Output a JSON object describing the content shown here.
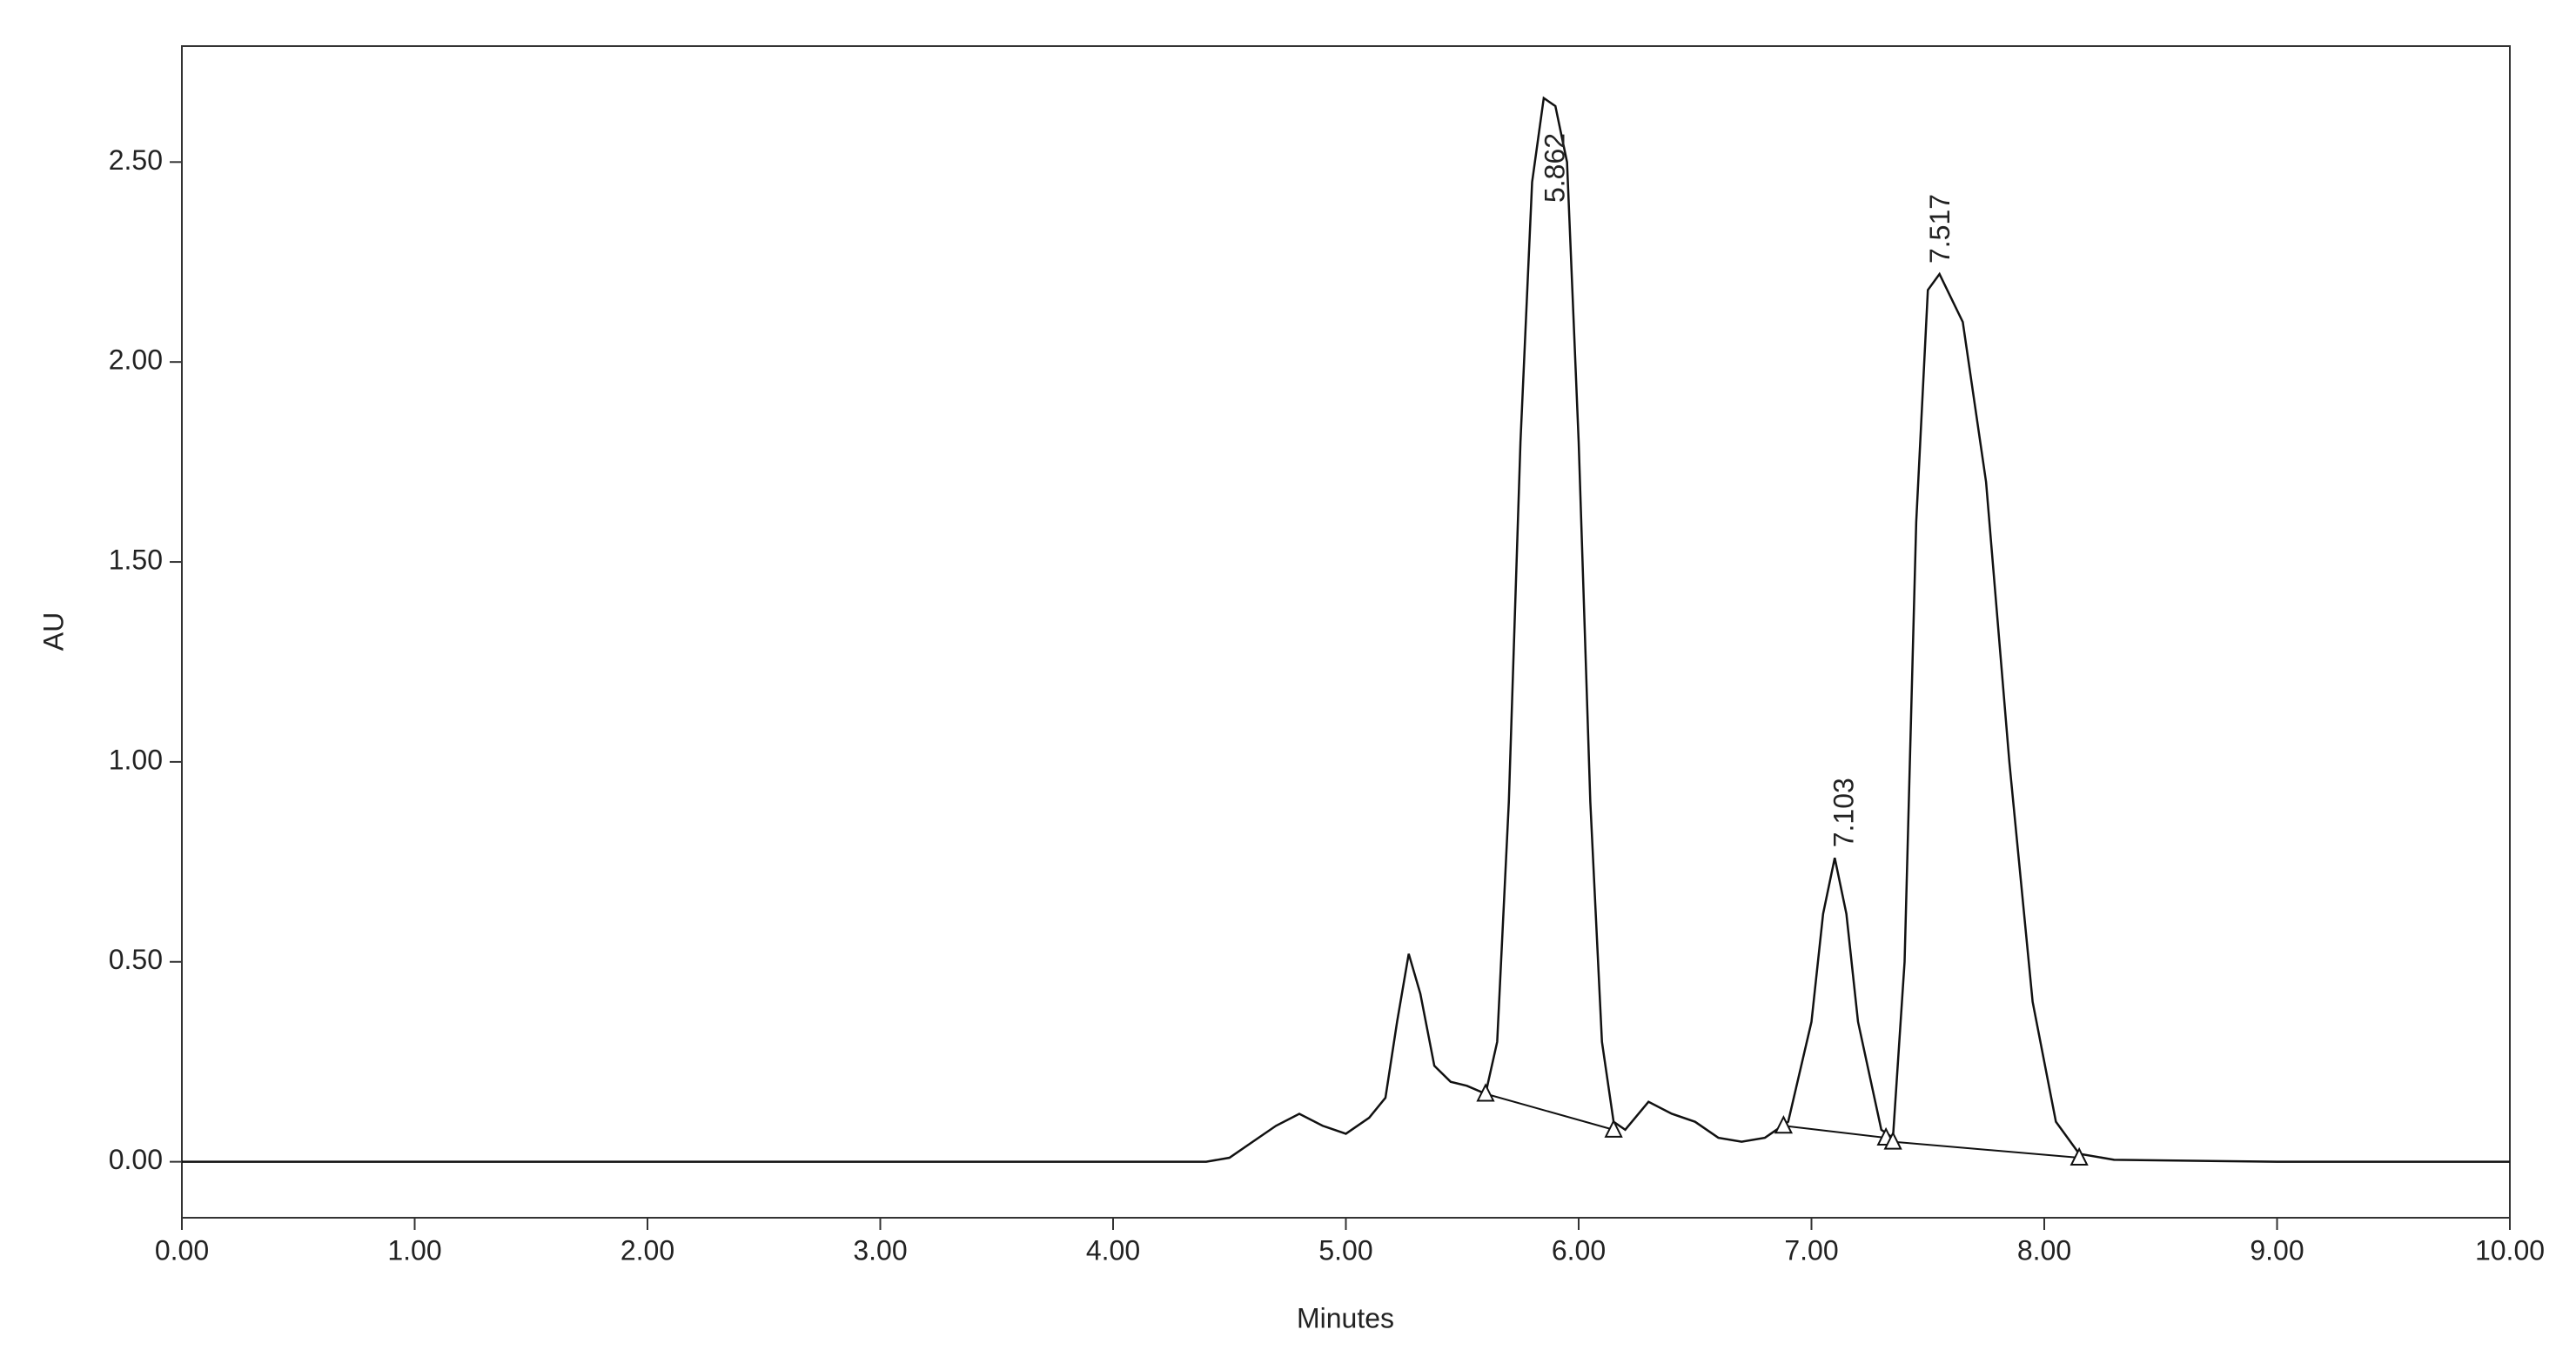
{
  "chart_data": {
    "type": "line",
    "x_label": "Minutes",
    "y_label": "AU",
    "color": "#111111",
    "grid": false,
    "x": [
      0,
      4.4,
      4.5,
      4.6,
      4.7,
      4.8,
      4.9,
      5.0,
      5.1,
      5.17,
      5.22,
      5.27,
      5.32,
      5.38,
      5.45,
      5.52,
      5.6,
      5.65,
      5.7,
      5.75,
      5.8,
      5.85,
      5.9,
      5.95,
      6.0,
      6.05,
      6.1,
      6.15,
      6.2,
      6.3,
      6.4,
      6.5,
      6.6,
      6.7,
      6.8,
      6.9,
      7.0,
      7.05,
      7.1,
      7.15,
      7.2,
      7.3,
      7.35,
      7.4,
      7.45,
      7.5,
      7.55,
      7.65,
      7.75,
      7.85,
      7.95,
      8.05,
      8.15,
      8.3,
      9.0,
      10.0
    ],
    "values": [
      0,
      0,
      0.01,
      0.05,
      0.09,
      0.12,
      0.09,
      0.07,
      0.11,
      0.16,
      0.35,
      0.52,
      0.42,
      0.24,
      0.2,
      0.19,
      0.17,
      0.3,
      0.9,
      1.8,
      2.45,
      2.66,
      2.64,
      2.5,
      1.8,
      0.9,
      0.3,
      0.1,
      0.08,
      0.15,
      0.12,
      0.1,
      0.06,
      0.05,
      0.06,
      0.1,
      0.35,
      0.62,
      0.76,
      0.62,
      0.35,
      0.08,
      0.06,
      0.5,
      1.6,
      2.18,
      2.22,
      2.1,
      1.7,
      1.0,
      0.4,
      0.1,
      0.02,
      0.005,
      0,
      0
    ],
    "markers": {
      "x": [
        5.6,
        6.15,
        6.88,
        7.32,
        7.35,
        8.15
      ],
      "y": [
        0.17,
        0.08,
        0.09,
        0.06,
        0.05,
        0.01
      ]
    },
    "peaks": {
      "x": [
        5.862,
        7.103,
        7.517
      ],
      "y": [
        2.66,
        0.76,
        2.22
      ]
    },
    "xlim": [
      0,
      10
    ],
    "ylim": [
      -0.14,
      2.79
    ],
    "xticks": [
      {
        "value": 0,
        "label": "0.00"
      },
      {
        "value": 1,
        "label": "1.00"
      },
      {
        "value": 2,
        "label": "2.00"
      },
      {
        "value": 3,
        "label": "3.00"
      },
      {
        "value": 4,
        "label": "4.00"
      },
      {
        "value": 5,
        "label": "5.00"
      },
      {
        "value": 6,
        "label": "6.00"
      },
      {
        "value": 7,
        "label": "7.00"
      },
      {
        "value": 8,
        "label": "8.00"
      },
      {
        "value": 9,
        "label": "9.00"
      },
      {
        "value": 10,
        "label": "10.00"
      }
    ],
    "yticks": [
      {
        "value": 0,
        "label": "0.00"
      },
      {
        "value": 0.5,
        "label": "0.50"
      },
      {
        "value": 1,
        "label": "1.00"
      },
      {
        "value": 1.5,
        "label": "1.50"
      },
      {
        "value": 2,
        "label": "2.00"
      },
      {
        "value": 2.5,
        "label": "2.50"
      }
    ]
  }
}
